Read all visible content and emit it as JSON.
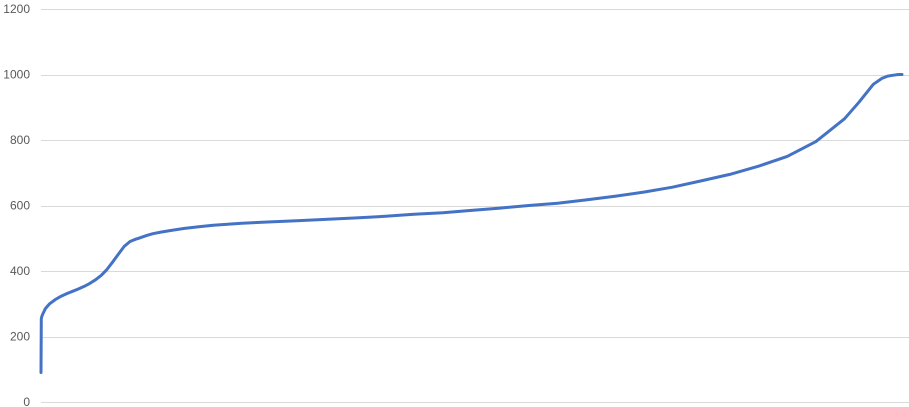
{
  "chart_data": {
    "type": "line",
    "title": "",
    "xlabel": "",
    "ylabel": "",
    "ylim": [
      0,
      1200
    ],
    "yticks": [
      0,
      200,
      400,
      600,
      800,
      1000,
      1200
    ],
    "grid": true,
    "legend": "none",
    "colors": {
      "series": "#4472c4",
      "grid": "#d9d9d9",
      "tick_text": "#595959"
    },
    "series": [
      {
        "x": [
          0,
          0.1,
          0.3,
          0.7,
          1.5,
          3,
          5,
          7,
          9,
          11,
          13,
          15,
          17,
          19,
          21,
          23,
          25,
          27,
          29,
          31,
          33,
          34,
          35,
          37,
          39,
          42,
          46,
          50,
          55,
          60,
          70,
          80,
          90,
          100,
          110,
          120,
          130,
          140,
          150,
          160,
          170,
          180,
          190,
          200,
          210,
          220,
          230,
          240,
          250,
          260,
          270,
          280,
          285,
          290,
          293,
          295,
          297,
          298,
          299,
          300
        ],
        "y": [
          90,
          255,
          262,
          270,
          285,
          300,
          313,
          323,
          331,
          338,
          345,
          353,
          362,
          373,
          387,
          405,
          428,
          452,
          475,
          490,
          497,
          500,
          503,
          509,
          514,
          519,
          525,
          530,
          535,
          540,
          546,
          550,
          554,
          558,
          562,
          567,
          573,
          578,
          585,
          592,
          600,
          607,
          617,
          628,
          641,
          656,
          675,
          695,
          720,
          750,
          795,
          865,
          915,
          970,
          988,
          995,
          998,
          999,
          1000,
          1000
        ]
      }
    ]
  }
}
